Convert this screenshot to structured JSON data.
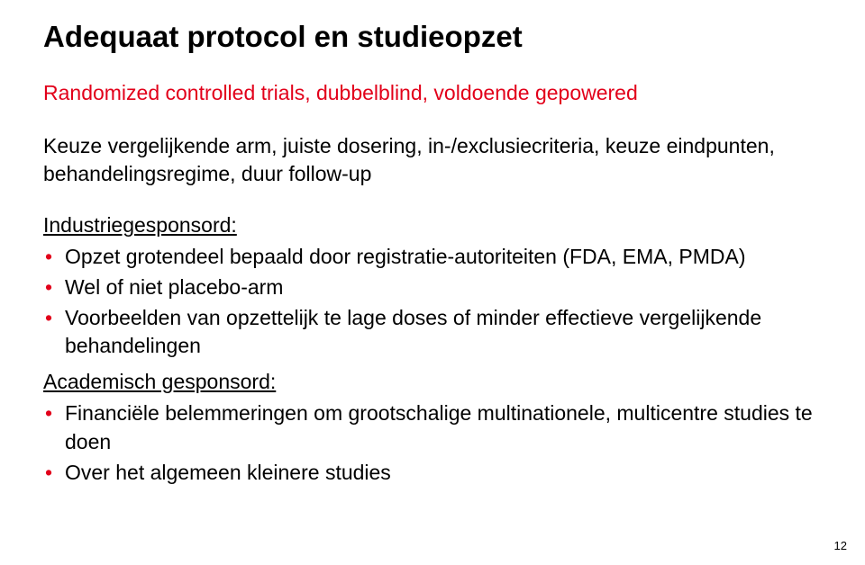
{
  "colors": {
    "title": "#000000",
    "subtitle": "#e2001a",
    "body_text": "#000000",
    "bullet_red": "#e2001a",
    "background": "#ffffff"
  },
  "typography": {
    "font_family": "Arial",
    "title_size_pt": 33,
    "title_weight": "bold",
    "body_size_pt": 23,
    "pagenum_size_pt": 13
  },
  "title": "Adequaat protocol en studieopzet",
  "subtitle": "Randomized controlled trials, dubbelblind, voldoende gepowered",
  "paragraph": "Keuze vergelijkende arm, juiste dosering, in-/exclusiecriteria, keuze eindpunten, behandelingsregime, duur follow-up",
  "sections": [
    {
      "heading": "Industriegesponsord:",
      "items": [
        "Opzet grotendeel bepaald door registratie-autoriteiten (FDA, EMA, PMDA)",
        "Wel of niet placebo-arm",
        "Voorbeelden van opzettelijk te lage doses of minder effectieve vergelijkende behandelingen"
      ]
    },
    {
      "heading": "Academisch gesponsord:",
      "items": [
        "Financiële belemmeringen om grootschalige multinationele, multicentre studies te doen",
        "Over het algemeen kleinere studies"
      ]
    }
  ],
  "page_number": "12"
}
